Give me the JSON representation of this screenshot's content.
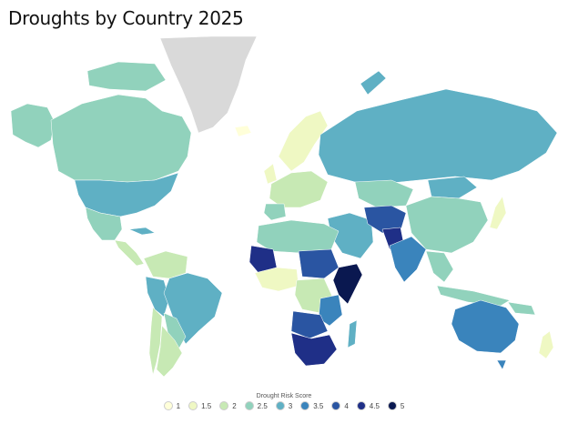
{
  "title": "Droughts by Country 2025",
  "legend": {
    "title": "Drought Risk Score",
    "items": [
      {
        "label": "1",
        "color": "#ffffd9"
      },
      {
        "label": "1.5",
        "color": "#eff8c3"
      },
      {
        "label": "2",
        "color": "#c7e9b4"
      },
      {
        "label": "2.5",
        "color": "#91d2bc"
      },
      {
        "label": "3",
        "color": "#5fb0c4"
      },
      {
        "label": "3.5",
        "color": "#3a84bc"
      },
      {
        "label": "4",
        "color": "#2a55a2"
      },
      {
        "label": "4.5",
        "color": "#1f2f87"
      },
      {
        "label": "5",
        "color": "#0a1850"
      }
    ]
  },
  "colors": {
    "no_data": "#d9d9d9",
    "border": "#ffffff"
  }
}
